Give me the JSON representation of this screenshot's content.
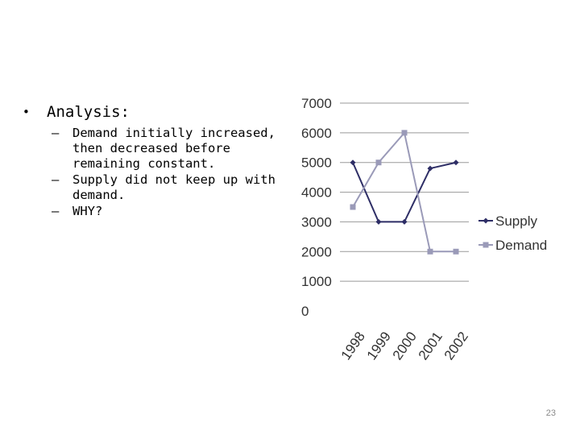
{
  "slide": {
    "heading": "Analysis:",
    "bullets": [
      "Demand initially increased, then decreased before remaining constant.",
      "Supply did not keep up with demand.",
      "WHY?"
    ],
    "page_number": "23"
  },
  "chart_data": {
    "type": "line",
    "title": "",
    "xlabel": "",
    "ylabel": "",
    "categories": [
      "1998",
      "1999",
      "2000",
      "2001",
      "2002"
    ],
    "ylim": [
      0,
      7000
    ],
    "yticks": [
      0,
      1000,
      2000,
      3000,
      4000,
      5000,
      6000,
      7000
    ],
    "grid": true,
    "legend": "right",
    "series": [
      {
        "name": "Supply",
        "values": [
          5000,
          3000,
          3000,
          4800,
          5000
        ],
        "color": "#2e2e66",
        "marker": "diamond"
      },
      {
        "name": "Demand",
        "values": [
          3500,
          5000,
          6000,
          2000,
          2000
        ],
        "color": "#9a9ab8",
        "marker": "square"
      }
    ]
  }
}
